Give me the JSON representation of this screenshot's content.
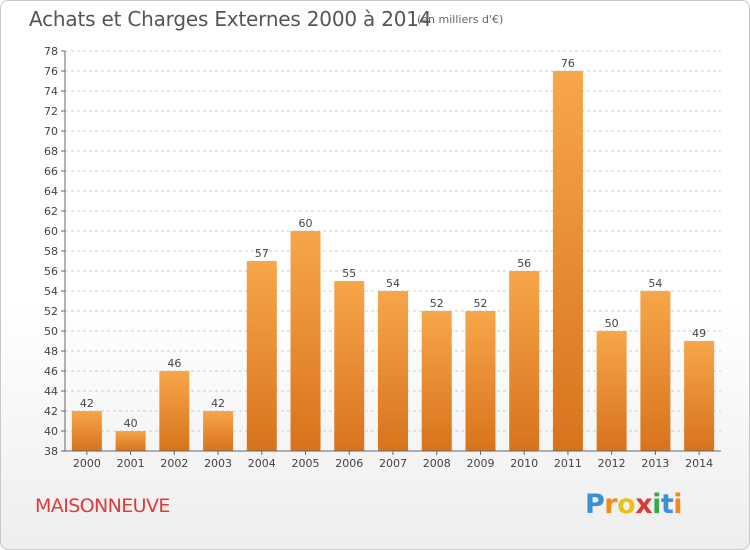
{
  "header": {
    "title": "Achats et Charges Externes 2000 à 2014",
    "subtitle": "(en milliers d'€)"
  },
  "commune": "MAISONNEUVE",
  "logo": {
    "text": "Proxiti",
    "letters": [
      "P",
      "r",
      "o",
      "x",
      "i",
      "t",
      "i"
    ],
    "letter_colors": [
      "#3a8fd6",
      "#f08a1c",
      "#e8c21a",
      "#d83a3a",
      "#3aa84a",
      "#3a8fd6",
      "#f08a1c"
    ]
  },
  "colors": {
    "bar_top": "#f7a64a",
    "bar_bottom": "#d8731c",
    "grid": "#cccccc",
    "axis": "#666666"
  },
  "chart_data": {
    "type": "bar",
    "title": "Achats et Charges Externes 2000 à 2014",
    "subtitle": "(en milliers d'€)",
    "xlabel": "",
    "ylabel": "",
    "categories": [
      "2000",
      "2001",
      "2002",
      "2003",
      "2004",
      "2005",
      "2006",
      "2007",
      "2008",
      "2009",
      "2010",
      "2011",
      "2012",
      "2013",
      "2014"
    ],
    "values": [
      42,
      40,
      46,
      42,
      57,
      60,
      55,
      54,
      52,
      52,
      56,
      76,
      50,
      54,
      49
    ],
    "ylim": [
      38,
      78
    ],
    "yticks": [
      38,
      40,
      42,
      44,
      46,
      48,
      50,
      52,
      54,
      56,
      58,
      60,
      62,
      64,
      66,
      68,
      70,
      72,
      74,
      76,
      78
    ],
    "grid": true,
    "grid_style": "dashed-horizontal",
    "legend": "none",
    "data_labels": true
  }
}
